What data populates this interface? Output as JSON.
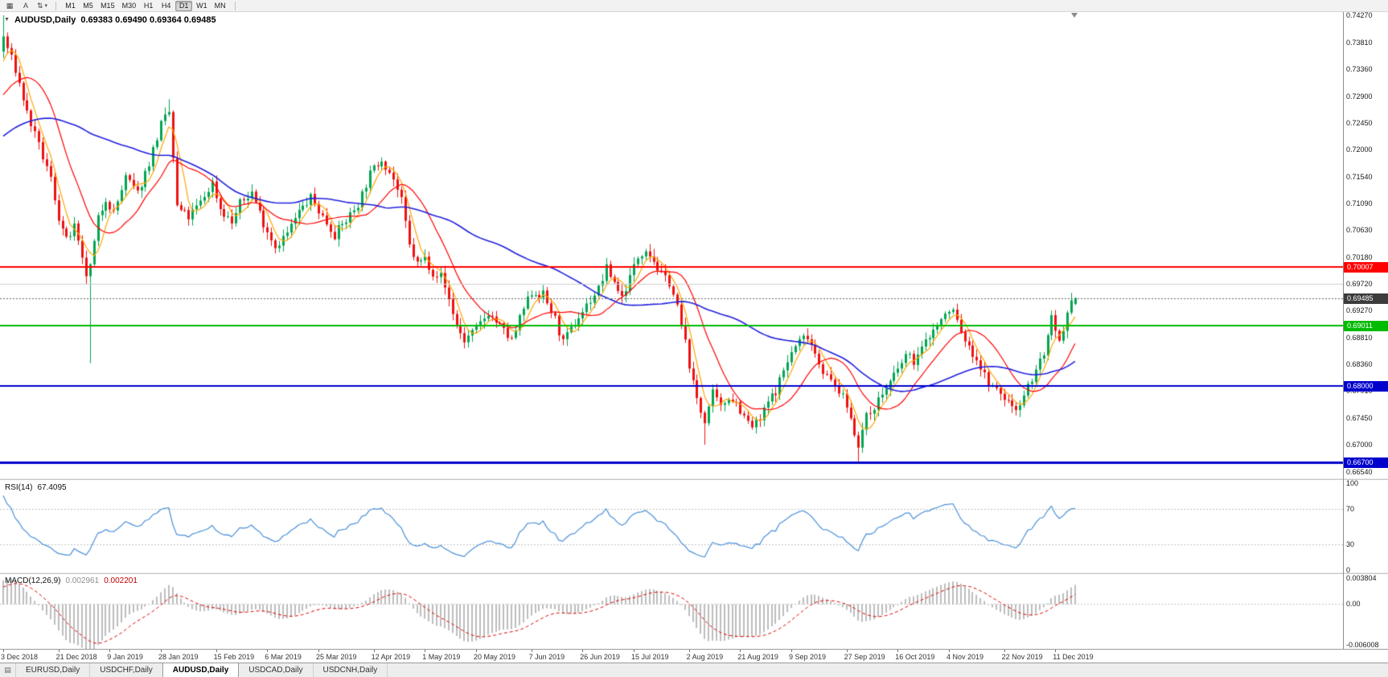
{
  "chart": {
    "title": "AUDUSD,Daily",
    "ohlc_display": "0.69383 0.69490 0.69364 0.69485"
  },
  "toolbar": {
    "buttons": [
      {
        "name": "charts-grid-button",
        "icon": "charts_grid"
      },
      {
        "name": "cursor-mode-button",
        "label": "A"
      },
      {
        "name": "scale-dropdown-button",
        "icon": "zoom",
        "caret": true
      }
    ],
    "timeframes": [
      {
        "label": "M1",
        "active": false
      },
      {
        "label": "M5",
        "active": false
      },
      {
        "label": "M15",
        "active": false
      },
      {
        "label": "M30",
        "active": false
      },
      {
        "label": "H1",
        "active": false
      },
      {
        "label": "H4",
        "active": false
      },
      {
        "label": "D1",
        "active": true
      },
      {
        "label": "W1",
        "active": false
      },
      {
        "label": "MN",
        "active": false
      }
    ]
  },
  "bottom_tabs": [
    {
      "label": "EURUSD,Daily",
      "active": false
    },
    {
      "label": "USDCHF,Daily",
      "active": false
    },
    {
      "label": "AUDUSD,Daily",
      "active": true
    },
    {
      "label": "USDCAD,Daily",
      "active": false
    },
    {
      "label": "USDCNH,Daily",
      "active": false
    }
  ],
  "icons": {
    "charts_grid": "▦",
    "zoom": "⇅",
    "dropdown_caret": "▾",
    "one_click_toggle": "▼",
    "window_list": "▤"
  },
  "chart_data": {
    "type": "candlestick",
    "symbol": "AUDUSD",
    "timeframe": "Daily",
    "last_candle": {
      "open": 0.69383,
      "high": 0.6949,
      "low": 0.69364,
      "close": 0.69485
    },
    "price_axis_labels": [
      "0.74270",
      "0.73810",
      "0.73360",
      "0.72900",
      "0.72450",
      "0.72000",
      "0.71540",
      "0.71090",
      "0.70630",
      "0.70180",
      "0.69720",
      "0.69270",
      "0.68810",
      "0.68360",
      "0.67910",
      "0.67450",
      "0.67000",
      "0.66540"
    ],
    "date_axis": {
      "labels": [
        "3 Dec 2018",
        "21 Dec 2018",
        "9 Jan 2019",
        "28 Jan 2019",
        "15 Feb 2019",
        "6 Mar 2019",
        "25 Mar 2019",
        "12 Apr 2019",
        "1 May 2019",
        "20 May 2019",
        "7 Jun 2019",
        "26 Jun 2019",
        "15 Jul 2019",
        "2 Aug 2019",
        "21 Aug 2019",
        "9 Sep 2019",
        "27 Sep 2019",
        "16 Oct 2019",
        "4 Nov 2019",
        "22 Nov 2019",
        "11 Dec 2019"
      ],
      "indices": [
        0,
        14,
        27,
        40,
        54,
        67,
        80,
        94,
        107,
        120,
        134,
        147,
        160,
        174,
        187,
        200,
        214,
        227,
        240,
        254,
        267
      ]
    },
    "close_waypoints": [
      [
        0,
        0.739
      ],
      [
        3,
        0.7335
      ],
      [
        6,
        0.7262
      ],
      [
        9,
        0.7205
      ],
      [
        12,
        0.715
      ],
      [
        14,
        0.7085
      ],
      [
        16,
        0.7045
      ],
      [
        18,
        0.7068
      ],
      [
        20,
        0.701
      ],
      [
        21,
        0.6988
      ],
      [
        22,
        0.7
      ],
      [
        24,
        0.7082
      ],
      [
        26,
        0.7118
      ],
      [
        28,
        0.7092
      ],
      [
        31,
        0.7152
      ],
      [
        34,
        0.7125
      ],
      [
        37,
        0.7178
      ],
      [
        40,
        0.7242
      ],
      [
        42,
        0.7262
      ],
      [
        43,
        0.7185
      ],
      [
        44,
        0.7102
      ],
      [
        47,
        0.7085
      ],
      [
        50,
        0.711
      ],
      [
        53,
        0.7143
      ],
      [
        55,
        0.71
      ],
      [
        58,
        0.7076
      ],
      [
        60,
        0.7108
      ],
      [
        63,
        0.7128
      ],
      [
        66,
        0.7076
      ],
      [
        69,
        0.7036
      ],
      [
        72,
        0.7058
      ],
      [
        75,
        0.7094
      ],
      [
        78,
        0.7118
      ],
      [
        81,
        0.7086
      ],
      [
        84,
        0.7056
      ],
      [
        87,
        0.708
      ],
      [
        90,
        0.7108
      ],
      [
        93,
        0.7158
      ],
      [
        96,
        0.7185
      ],
      [
        99,
        0.715
      ],
      [
        101,
        0.7112
      ],
      [
        103,
        0.7036
      ],
      [
        105,
        0.7006
      ],
      [
        107,
        0.7016
      ],
      [
        109,
        0.6992
      ],
      [
        111,
        0.6986
      ],
      [
        113,
        0.6946
      ],
      [
        115,
        0.6902
      ],
      [
        117,
        0.6876
      ],
      [
        120,
        0.6896
      ],
      [
        123,
        0.6924
      ],
      [
        126,
        0.69
      ],
      [
        129,
        0.6876
      ],
      [
        132,
        0.693
      ],
      [
        134,
        0.6958
      ],
      [
        137,
        0.6954
      ],
      [
        140,
        0.6912
      ],
      [
        142,
        0.6872
      ],
      [
        145,
        0.6906
      ],
      [
        148,
        0.6936
      ],
      [
        151,
        0.6964
      ],
      [
        153,
        0.6998
      ],
      [
        155,
        0.6976
      ],
      [
        157,
        0.695
      ],
      [
        159,
        0.6984
      ],
      [
        161,
        0.7018
      ],
      [
        163,
        0.7034
      ],
      [
        165,
        0.7012
      ],
      [
        167,
        0.6986
      ],
      [
        169,
        0.6976
      ],
      [
        171,
        0.6932
      ],
      [
        173,
        0.6872
      ],
      [
        175,
        0.6802
      ],
      [
        177,
        0.6756
      ],
      [
        178,
        0.6742
      ],
      [
        180,
        0.6786
      ],
      [
        182,
        0.6762
      ],
      [
        184,
        0.6782
      ],
      [
        186,
        0.6772
      ],
      [
        188,
        0.6746
      ],
      [
        190,
        0.673
      ],
      [
        192,
        0.6742
      ],
      [
        194,
        0.6772
      ],
      [
        196,
        0.6792
      ],
      [
        198,
        0.6826
      ],
      [
        200,
        0.6856
      ],
      [
        202,
        0.6876
      ],
      [
        204,
        0.6886
      ],
      [
        206,
        0.6856
      ],
      [
        208,
        0.6826
      ],
      [
        210,
        0.6806
      ],
      [
        212,
        0.6792
      ],
      [
        214,
        0.6766
      ],
      [
        216,
        0.6722
      ],
      [
        217,
        0.6702
      ],
      [
        219,
        0.6746
      ],
      [
        221,
        0.6766
      ],
      [
        223,
        0.6786
      ],
      [
        225,
        0.6806
      ],
      [
        227,
        0.6826
      ],
      [
        229,
        0.6852
      ],
      [
        231,
        0.6842
      ],
      [
        233,
        0.6862
      ],
      [
        235,
        0.6886
      ],
      [
        237,
        0.6902
      ],
      [
        239,
        0.692
      ],
      [
        241,
        0.6928
      ],
      [
        243,
        0.6892
      ],
      [
        245,
        0.6862
      ],
      [
        247,
        0.6846
      ],
      [
        249,
        0.6816
      ],
      [
        251,
        0.6796
      ],
      [
        253,
        0.6786
      ],
      [
        255,
        0.6772
      ],
      [
        257,
        0.6762
      ],
      [
        259,
        0.6786
      ],
      [
        261,
        0.6812
      ],
      [
        263,
        0.6842
      ],
      [
        264,
        0.6856
      ],
      [
        265,
        0.6882
      ],
      [
        266,
        0.6912
      ],
      [
        267,
        0.6886
      ],
      [
        268,
        0.6872
      ],
      [
        269,
        0.6886
      ],
      [
        270,
        0.6916
      ],
      [
        271,
        0.6938
      ],
      [
        272,
        0.69485
      ]
    ],
    "ma_warmup_waypoints": [
      [
        -60,
        0.705
      ],
      [
        -45,
        0.714
      ],
      [
        -30,
        0.723
      ],
      [
        -18,
        0.728
      ],
      [
        -8,
        0.724
      ],
      [
        -1,
        0.7365
      ]
    ],
    "special_highs": {
      "0": 0.7427,
      "42": 0.7285
    },
    "special_lows": {
      "22": 0.6838,
      "178": 0.67,
      "217": 0.6672
    },
    "horizontal_lines": [
      {
        "value": "0.70007",
        "price": 0.70007,
        "color": "#FF0000",
        "width": 2,
        "badge": true
      },
      {
        "value": "",
        "price": 0.6972,
        "color": "#CFCFCF",
        "width": 1,
        "badge": false
      },
      {
        "value": "0.69011",
        "price": 0.69011,
        "color": "#00BB00",
        "width": 2,
        "badge": true
      },
      {
        "value": "0.68000",
        "price": 0.68,
        "color": "#0000CC",
        "width": 2,
        "badge": true
      },
      {
        "value": "0.66700",
        "price": 0.667,
        "color": "#0000CC",
        "width": 3,
        "badge": true
      }
    ],
    "current_price": {
      "value": "0.69485",
      "price": 0.69485,
      "badge_color": "#3C3C3C"
    },
    "moving_averages": [
      {
        "period": 5,
        "color": "#FFA500",
        "width": 1.2
      },
      {
        "period": 14,
        "color": "#FF0000",
        "width": 1.2
      },
      {
        "period": 55,
        "color": "#2020DD",
        "width": 1.6
      }
    ],
    "colors": {
      "background": "#FFFFFF",
      "candle_up": "#00A550",
      "candle_down": "#EE1111",
      "rsi_line": "#4A90D9",
      "rsi_levels": "#C0C0C0",
      "macd_hist": "#BDBDBD",
      "macd_signal": "#DD0000",
      "zero_line": "#C8C8C8"
    },
    "rsi": {
      "label": "RSI(14)",
      "value": "67.4095",
      "period": 14,
      "axis_labels": [
        "100",
        "70",
        "30",
        "0"
      ],
      "dashed_levels": [
        70,
        30
      ]
    },
    "macd": {
      "label": "MACD(12,26,9)",
      "value_main": "0.002961",
      "value_signal": "0.002201",
      "fast": 12,
      "slow": 26,
      "signal": 9,
      "axis_labels": [
        "0.003804",
        "0.00",
        "-0.006008"
      ]
    }
  }
}
